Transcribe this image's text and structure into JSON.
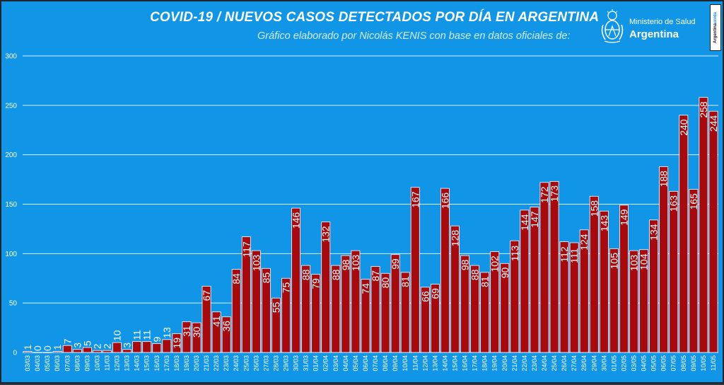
{
  "header": {
    "title": "COVID-19  /  NUEVOS CASOS DETECTADOS POR DÍA EN ARGENTINA",
    "subtitle": "Gráfico elaborado por Nicolás KENIS con base en datos oficiales de:"
  },
  "logo": {
    "ministry": "Ministerio de Salud",
    "country": "Argentina",
    "emblem_icon": "coat-of-arms-icon"
  },
  "badge": {
    "text_main": "Argentina",
    "text_accent": "unida"
  },
  "colors": {
    "background": "#1195e6",
    "bar_fill": "#a8090c",
    "bar_stroke": "#ffffff",
    "gridline": "#ffffff",
    "text": "#ffffff"
  },
  "chart_data": {
    "type": "bar",
    "title": "COVID-19  /  NUEVOS CASOS DETECTADOS POR DÍA EN ARGENTINA",
    "xlabel": "",
    "ylabel": "",
    "ylim": [
      0,
      300
    ],
    "yticks": [
      0,
      50,
      100,
      150,
      200,
      250,
      300
    ],
    "grid": true,
    "legend": "none",
    "categories": [
      "03/03",
      "04/03",
      "05/03",
      "06/03",
      "07/03",
      "08/03",
      "09/03",
      "10/03",
      "11/03",
      "12/03",
      "13/03",
      "14/03",
      "15/03",
      "16/03",
      "17/03",
      "18/03",
      "19/03",
      "20/03",
      "21/03",
      "22/03",
      "23/03",
      "24/03",
      "25/03",
      "26/03",
      "27/03",
      "28/03",
      "29/03",
      "30/03",
      "31/03",
      "01/04",
      "02/04",
      "03/04",
      "04/04",
      "05/04",
      "06/04",
      "07/04",
      "08/04",
      "09/04",
      "10/04",
      "11/04",
      "12/04",
      "13/04",
      "14/04",
      "15/04",
      "16/04",
      "17/04",
      "18/04",
      "19/04",
      "20/04",
      "21/04",
      "22/04",
      "23/04",
      "24/04",
      "25/04",
      "26/04",
      "27/04",
      "28/04",
      "29/04",
      "30/04",
      "01/05",
      "02/05",
      "03/05",
      "04/05",
      "05/05",
      "06/05",
      "07/05",
      "08/05",
      "09/05",
      "10/05",
      "11/05"
    ],
    "values": [
      1,
      0,
      0,
      1,
      7,
      3,
      5,
      2,
      2,
      10,
      3,
      11,
      11,
      9,
      13,
      19,
      31,
      30,
      67,
      41,
      36,
      84,
      117,
      103,
      85,
      55,
      75,
      146,
      88,
      79,
      132,
      88,
      98,
      103,
      74,
      87,
      80,
      99,
      81,
      167,
      66,
      69,
      166,
      128,
      98,
      88,
      81,
      102,
      90,
      113,
      144,
      147,
      172,
      173,
      112,
      111,
      124,
      158,
      143,
      105,
      149,
      103,
      104,
      134,
      188,
      163,
      240,
      165,
      258,
      244
    ]
  }
}
